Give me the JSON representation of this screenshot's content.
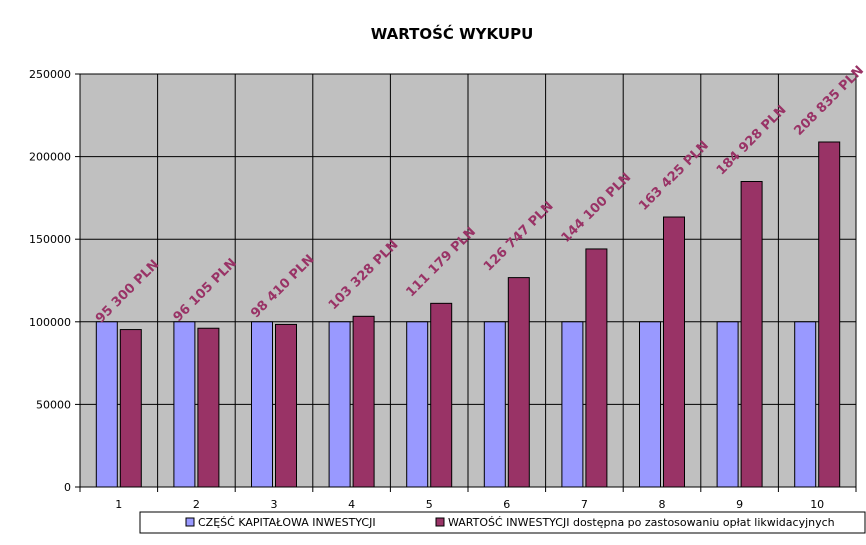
{
  "chart_data": {
    "type": "bar",
    "title": "WARTOŚĆ WYKUPU",
    "xlabel": "",
    "ylabel": "",
    "categories": [
      "1",
      "2",
      "3",
      "4",
      "5",
      "6",
      "7",
      "8",
      "9",
      "10"
    ],
    "ylim": [
      0,
      250000
    ],
    "yticks": [
      "0",
      "50000",
      "100000",
      "150000",
      "200000",
      "250000"
    ],
    "grid": true,
    "legend_position": "bottom",
    "series": [
      {
        "name": "CZĘŚĆ KAPITAŁOWA INWESTYCJI",
        "color": "#9999ff",
        "values": [
          100000,
          100000,
          100000,
          100000,
          100000,
          100000,
          100000,
          100000,
          100000,
          100000
        ]
      },
      {
        "name": "WARTOŚĆ INWESTYCJI dostępna po zastosowaniu opłat likwidacyjnych",
        "color": "#993366",
        "values": [
          95300,
          96105,
          98410,
          103328,
          111179,
          126747,
          144100,
          163425,
          184928,
          208835
        ],
        "data_labels": [
          "95 300 PLN",
          "96 105 PLN",
          "98 410 PLN",
          "103 328 PLN",
          "111 179 PLN",
          "126 747 PLN",
          "144 100 PLN",
          "163 425 PLN",
          "184 928 PLN",
          "208 835 PLN"
        ]
      }
    ],
    "colors": {
      "plot_background": "#c0c0c0",
      "gridline": "#000000",
      "data_label": "#993366"
    }
  }
}
